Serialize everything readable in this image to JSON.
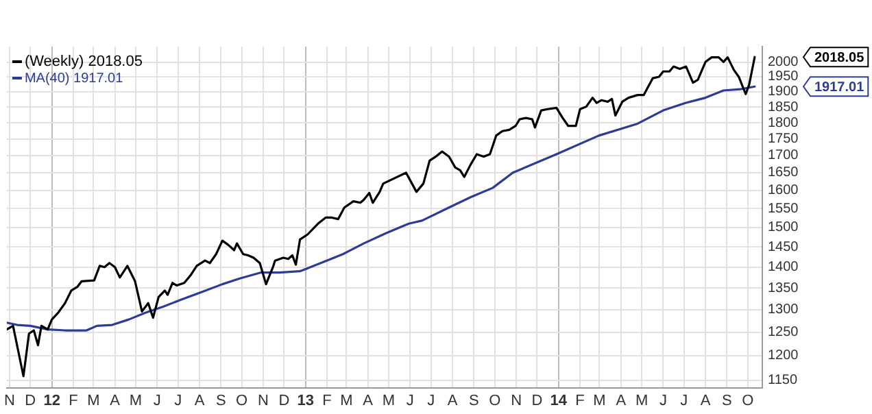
{
  "chart_data": {
    "type": "line",
    "log": "y",
    "grid": true,
    "legend": "top left",
    "marker": "none",
    "line_style": "solid",
    "xlim": [
      "2011-10-28",
      "2014-10-22"
    ],
    "ylim": [
      1135,
      2055
    ],
    "yticks": [
      1150,
      1200,
      1250,
      1300,
      1350,
      1400,
      1450,
      1500,
      1550,
      1600,
      1650,
      1700,
      1750,
      1800,
      1850,
      1900,
      1950,
      2000
    ],
    "xticks": [
      {
        "value": "2011-11-01",
        "label": "N"
      },
      {
        "value": "2011-12-01",
        "label": "D"
      },
      {
        "value": "2012-01-01",
        "label": "12"
      },
      {
        "value": "2012-02-01",
        "label": "F"
      },
      {
        "value": "2012-03-01",
        "label": "M"
      },
      {
        "value": "2012-04-01",
        "label": "A"
      },
      {
        "value": "2012-05-01",
        "label": "M"
      },
      {
        "value": "2012-06-01",
        "label": "J"
      },
      {
        "value": "2012-07-01",
        "label": "J"
      },
      {
        "value": "2012-08-01",
        "label": "A"
      },
      {
        "value": "2012-09-01",
        "label": "S"
      },
      {
        "value": "2012-10-01",
        "label": "O"
      },
      {
        "value": "2012-11-01",
        "label": "N"
      },
      {
        "value": "2012-12-01",
        "label": "D"
      },
      {
        "value": "2013-01-01",
        "label": "13"
      },
      {
        "value": "2013-02-01",
        "label": "F"
      },
      {
        "value": "2013-03-01",
        "label": "M"
      },
      {
        "value": "2013-04-01",
        "label": "A"
      },
      {
        "value": "2013-05-01",
        "label": "M"
      },
      {
        "value": "2013-06-01",
        "label": "J"
      },
      {
        "value": "2013-07-01",
        "label": "J"
      },
      {
        "value": "2013-08-01",
        "label": "A"
      },
      {
        "value": "2013-09-01",
        "label": "S"
      },
      {
        "value": "2013-10-01",
        "label": "O"
      },
      {
        "value": "2013-11-01",
        "label": "N"
      },
      {
        "value": "2013-12-01",
        "label": "D"
      },
      {
        "value": "2014-01-01",
        "label": "14"
      },
      {
        "value": "2014-02-01",
        "label": "F"
      },
      {
        "value": "2014-03-01",
        "label": "M"
      },
      {
        "value": "2014-04-01",
        "label": "A"
      },
      {
        "value": "2014-05-01",
        "label": "M"
      },
      {
        "value": "2014-06-01",
        "label": "J"
      },
      {
        "value": "2014-07-01",
        "label": "J"
      },
      {
        "value": "2014-08-01",
        "label": "A"
      },
      {
        "value": "2014-09-01",
        "label": "S"
      },
      {
        "value": "2014-10-01",
        "label": "O"
      }
    ],
    "annotations": [
      "2018.05",
      "1917.01"
    ],
    "series": [
      {
        "name": "(Weekly) 2018.05",
        "color": "#000000",
        "x": [
          "2011-10-28",
          "2011-11-06",
          "2011-11-21",
          "2011-11-29",
          "2011-12-06",
          "2011-12-12",
          "2011-12-17",
          "2011-12-26",
          "2012-01-01",
          "2012-01-10",
          "2012-01-20",
          "2012-01-29",
          "2012-02-07",
          "2012-02-13",
          "2012-03-02",
          "2012-03-10",
          "2012-03-17",
          "2012-03-24",
          "2012-04-01",
          "2012-04-08",
          "2012-04-19",
          "2012-04-30",
          "2012-05-10",
          "2012-05-19",
          "2012-05-26",
          "2012-06-03",
          "2012-06-12",
          "2012-06-16",
          "2012-06-23",
          "2012-06-29",
          "2012-07-10",
          "2012-07-19",
          "2012-07-28",
          "2012-08-09",
          "2012-08-16",
          "2012-08-25",
          "2012-09-03",
          "2012-09-11",
          "2012-09-20",
          "2012-09-24",
          "2012-10-03",
          "2012-10-10",
          "2012-10-18",
          "2012-10-27",
          "2012-11-05",
          "2012-11-15",
          "2012-11-18",
          "2012-11-30",
          "2012-12-07",
          "2012-12-13",
          "2012-12-18",
          "2012-12-24",
          "2013-01-04",
          "2013-01-19",
          "2013-01-30",
          "2013-02-08",
          "2013-02-17",
          "2013-02-26",
          "2013-03-11",
          "2013-03-21",
          "2013-03-26",
          "2013-04-03",
          "2013-04-08",
          "2013-04-18",
          "2013-04-23",
          "2013-05-26",
          "2013-06-10",
          "2013-06-20",
          "2013-06-29",
          "2013-07-08",
          "2013-07-17",
          "2013-07-27",
          "2013-08-05",
          "2013-08-12",
          "2013-08-18",
          "2013-08-27",
          "2013-09-05",
          "2013-09-15",
          "2013-09-24",
          "2013-10-03",
          "2013-10-12",
          "2013-10-22",
          "2013-10-31",
          "2013-11-06",
          "2013-11-15",
          "2013-11-24",
          "2013-11-28",
          "2013-12-07",
          "2013-12-16",
          "2013-12-29",
          "2014-01-07",
          "2014-01-15",
          "2014-01-26",
          "2014-02-01",
          "2014-02-10",
          "2014-02-19",
          "2014-02-25",
          "2014-03-04",
          "2014-03-13",
          "2014-03-19",
          "2014-03-24",
          "2014-04-03",
          "2014-04-12",
          "2014-04-25",
          "2014-05-04",
          "2014-05-17",
          "2014-05-26",
          "2014-06-01",
          "2014-06-10",
          "2014-06-16",
          "2014-06-25",
          "2014-07-04",
          "2014-07-14",
          "2014-07-21",
          "2014-08-01",
          "2014-08-10",
          "2014-08-20",
          "2014-08-27",
          "2014-09-02",
          "2014-09-11",
          "2014-09-18",
          "2014-09-28",
          "2014-10-03",
          "2014-10-11"
        ],
        "values": [
          1256,
          1264,
          1158,
          1247,
          1254,
          1222,
          1264,
          1256,
          1278,
          1293,
          1315,
          1344,
          1353,
          1366,
          1368,
          1403,
          1400,
          1410,
          1400,
          1375,
          1403,
          1366,
          1296,
          1315,
          1282,
          1329,
          1344,
          1334,
          1362,
          1356,
          1362,
          1380,
          1403,
          1416,
          1410,
          1432,
          1466,
          1456,
          1442,
          1459,
          1432,
          1429,
          1423,
          1410,
          1359,
          1400,
          1416,
          1423,
          1420,
          1429,
          1406,
          1469,
          1482,
          1510,
          1526,
          1526,
          1522,
          1553,
          1570,
          1566,
          1574,
          1593,
          1566,
          1596,
          1619,
          1650,
          1596,
          1619,
          1685,
          1697,
          1712,
          1697,
          1665,
          1657,
          1638,
          1673,
          1704,
          1697,
          1704,
          1760,
          1774,
          1778,
          1790,
          1811,
          1815,
          1811,
          1785,
          1839,
          1843,
          1847,
          1815,
          1790,
          1790,
          1843,
          1851,
          1880,
          1863,
          1872,
          1867,
          1876,
          1823,
          1867,
          1880,
          1889,
          1889,
          1945,
          1950,
          1968,
          1968,
          1985,
          1977,
          1985,
          1930,
          1940,
          2001,
          2017,
          2017,
          2001,
          2017,
          1973,
          1950,
          1892,
          1923,
          2018.05
        ]
      },
      {
        "name": "MA(40) 1917.01",
        "color": "#2c3c94",
        "x": [
          "2011-10-28",
          "2011-11-12",
          "2011-12-01",
          "2011-12-26",
          "2012-01-20",
          "2012-02-20",
          "2012-03-06",
          "2012-03-28",
          "2012-04-21",
          "2012-05-15",
          "2012-06-10",
          "2012-07-04",
          "2012-08-05",
          "2012-09-03",
          "2012-09-29",
          "2012-10-29",
          "2012-11-24",
          "2012-12-24",
          "2013-01-23",
          "2013-02-24",
          "2013-03-26",
          "2013-04-27",
          "2013-05-30",
          "2013-06-18",
          "2013-07-27",
          "2013-08-27",
          "2013-09-28",
          "2013-10-27",
          "2013-12-29",
          "2014-02-28",
          "2014-04-25",
          "2014-06-01",
          "2014-07-03",
          "2014-08-01",
          "2014-08-27",
          "2014-09-20",
          "2014-10-11"
        ],
        "values": [
          1271,
          1266,
          1264,
          1256,
          1254,
          1254,
          1264,
          1266,
          1278,
          1293,
          1307,
          1322,
          1341,
          1359,
          1373,
          1387,
          1387,
          1390,
          1410,
          1432,
          1459,
          1485,
          1510,
          1518,
          1553,
          1581,
          1607,
          1650,
          1704,
          1760,
          1797,
          1839,
          1863,
          1880,
          1904,
          1908,
          1917.01
        ]
      }
    ]
  }
}
